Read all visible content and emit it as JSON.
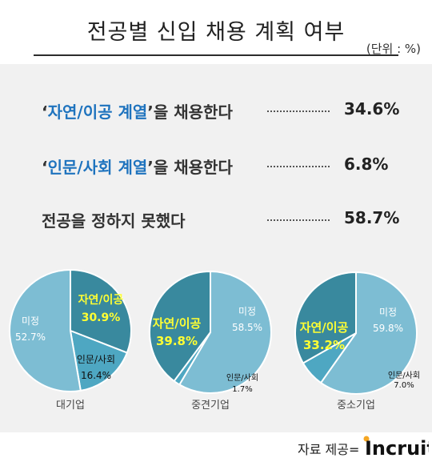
{
  "header": {
    "title": "전공별 신입 채용 계획 여부",
    "unit": "(단위 : %)"
  },
  "summary": [
    {
      "prefix": "‘",
      "highlight": "자연/이공 계열",
      "suffix": "’을 채용한다",
      "value": "34.6%"
    },
    {
      "prefix": "‘",
      "highlight": "인문/사회 계열",
      "suffix": "’을 채용한다",
      "value": "6.8%"
    },
    {
      "prefix": "",
      "highlight": "",
      "suffix": "전공을 정하지 못했다",
      "value": "58.7%"
    }
  ],
  "chart_data": {
    "type": "pie",
    "colors": {
      "자연/이공": "#39899e",
      "인문/사회": "#4ea7c2",
      "미정": "#7dbdd3",
      "highlight_text": "#ffff33"
    },
    "charts": [
      {
        "name": "대기업",
        "slices": [
          {
            "label": "자연/이공",
            "value": 30.9,
            "display": "30.9%"
          },
          {
            "label": "인문/사회",
            "value": 16.4,
            "display": "16.4%"
          },
          {
            "label": "미정",
            "value": 52.7,
            "display": "52.7%"
          }
        ]
      },
      {
        "name": "중견기업",
        "slices": [
          {
            "label": "미정",
            "value": 58.5,
            "display": "58.5%"
          },
          {
            "label": "인문/사회",
            "value": 1.7,
            "display": "1.7%"
          },
          {
            "label": "자연/이공",
            "value": 39.8,
            "display": "39.8%"
          }
        ]
      },
      {
        "name": "중소기업",
        "slices": [
          {
            "label": "미정",
            "value": 59.8,
            "display": "59.8%"
          },
          {
            "label": "인문/사회",
            "value": 7.0,
            "display": "7.0%"
          },
          {
            "label": "자연/이공",
            "value": 33.2,
            "display": "33.2%"
          }
        ]
      }
    ]
  },
  "footer": {
    "source_label": "자료 제공=",
    "logo_text": "Incruit"
  }
}
